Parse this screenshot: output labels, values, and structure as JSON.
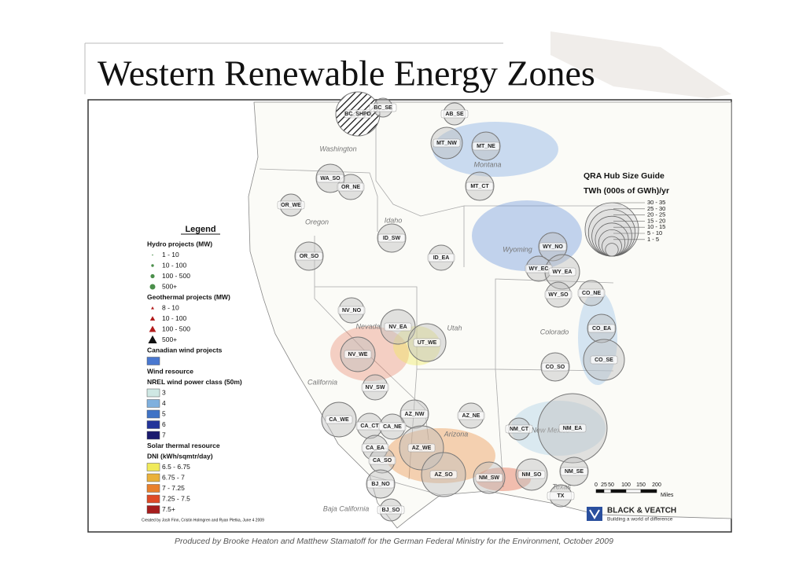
{
  "title": "Western Renewable Energy Zones",
  "footer": "Produced by Brooke Heaton and Matthew Stamatoff for the German Federal Ministry for the Environment, October 2009",
  "map": {
    "regions": [
      "Washington",
      "Oregon",
      "Idaho",
      "Montana",
      "Wyoming",
      "Nevada",
      "Utah",
      "Colorado",
      "California",
      "Arizona",
      "New Mexico",
      "Texas",
      "Baja California"
    ],
    "hubs": [
      "BC_SHPD",
      "BC_SE",
      "AB_SE",
      "MT_NW",
      "MT_NE",
      "WA_SO",
      "OR_NE",
      "MT_CT",
      "OR_WE",
      "ID_SW",
      "OR_SO",
      "ID_EA",
      "WY_NO",
      "WY_EC",
      "WY_EA",
      "WY_SO",
      "CO_NE",
      "NV_NO",
      "NV_EA",
      "UT_WE",
      "CO_EA",
      "NV_WE",
      "CO_SE",
      "CO_SO",
      "NV_SW",
      "AZ_NW",
      "CA_WE",
      "AZ_NE",
      "CA_CT",
      "CA_NE",
      "NM_EA",
      "NM_CT",
      "CA_EA",
      "AZ_WE",
      "CA_SO",
      "NM_SO",
      "NM_SE",
      "AZ_SO",
      "NM_SW",
      "BJ_NO",
      "TX",
      "BJ_SO"
    ]
  },
  "legend": {
    "title": "Legend",
    "sections": [
      {
        "headings": [
          "Hydro projects (MW)"
        ],
        "items": [
          "1 - 10",
          "10 - 100",
          "100 - 500",
          "500+"
        ]
      },
      {
        "headings": [
          "Geothermal projects (MW)"
        ],
        "items": [
          "8 - 10",
          "10 - 100",
          "100 - 500",
          "500+"
        ]
      },
      {
        "headings": [
          "Canadian wind projects"
        ],
        "swatch_color": "#4a78d0"
      },
      {
        "headings": [
          "Wind resource",
          "NREL wind power class (50m)"
        ],
        "items": [
          "3",
          "4",
          "5",
          "6",
          "7"
        ],
        "colors": [
          "#cfe8e4",
          "#7fb0de",
          "#3f73c6",
          "#23349a",
          "#1a1a6e"
        ]
      },
      {
        "headings": [
          "Solar thermal resource",
          "DNI (kWh/sqmtr/day)"
        ],
        "items": [
          "6.5 - 6.75",
          "6.75 - 7",
          "7 - 7.25",
          "7.25 - 7.5",
          "7.5+"
        ],
        "colors": [
          "#f0ea5a",
          "#eab13a",
          "#e9802c",
          "#df4a26",
          "#a61c1c"
        ]
      }
    ]
  },
  "size_guide": {
    "title": "QRA Hub Size Guide",
    "subtitle": "TWh (000s of GWh)/yr",
    "classes": [
      "30 - 35",
      "25 - 30",
      "20 - 25",
      "15 - 20",
      "10 - 15",
      "5 - 10",
      "1 - 5"
    ]
  },
  "scale": {
    "ticks": [
      "0",
      "25",
      "50",
      "100",
      "150",
      "200"
    ],
    "unit": "Miles"
  },
  "credit": "Created by Josh Finn, Cristin Holmgren and Ryan Pletka, June 4 2009",
  "logo": {
    "name": "BLACK & VEATCH",
    "tagline": "Building a world of difference"
  }
}
